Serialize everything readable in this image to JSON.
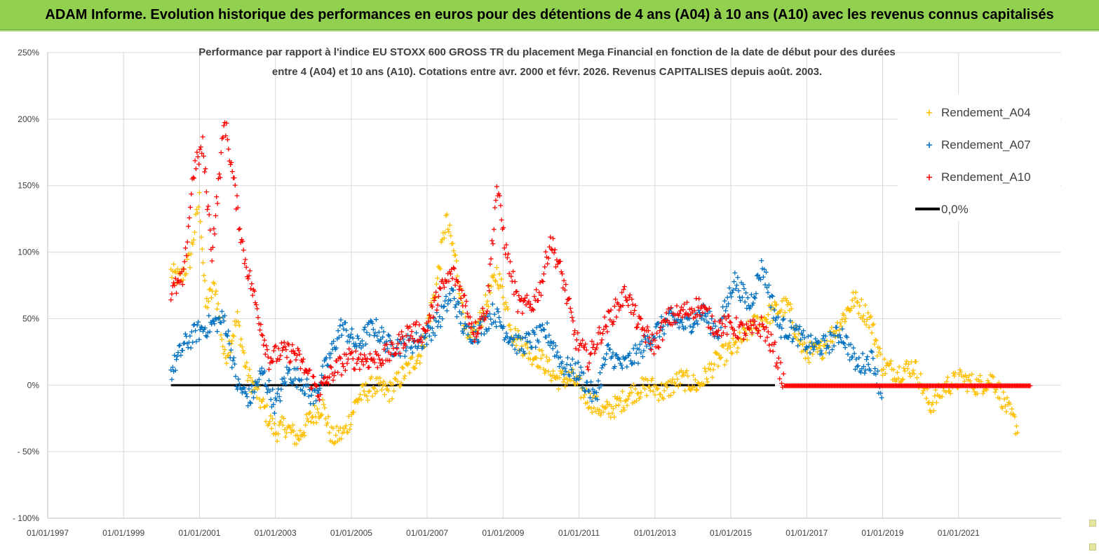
{
  "banner": {
    "title": "ADAM Informe. Evolution historique des performances en euros pour des détentions de 4 ans (A04) à 10 ans (A10) avec les revenus connus capitalisés"
  },
  "chart_data": {
    "type": "scatter",
    "title_line1": "Performance par rapport à l'indice EU STOXX 600 GROSS TR  du placement Mega Financial  en fonction de la date de début pour des durées",
    "title_line2": "entre 4 (A04) et 10 ans (A10). Cotations entre avr. 2000 et févr. 2026. Revenus CAPITALISES depuis août. 2003.",
    "x_ticks": [
      "01/01/1997",
      "01/01/1999",
      "01/01/2001",
      "01/01/2003",
      "01/01/2005",
      "01/01/2007",
      "01/01/2009",
      "01/01/2011",
      "01/01/2013",
      "01/01/2015",
      "01/01/2017",
      "01/01/2019",
      "01/01/2021"
    ],
    "y_ticks": [
      "250%",
      "200%",
      "150%",
      "100%",
      "50%",
      "0%",
      "- 50%",
      "- 100%"
    ],
    "xlim": [
      "1997-01-01",
      "2023-09-15"
    ],
    "ylim": [
      -100,
      250
    ],
    "grid": true,
    "legend_position": "top-right",
    "series": [
      {
        "name": "Rendement_A04",
        "color": "#ffc000",
        "marker": "+",
        "points": [
          [
            "2000-04-01",
            85
          ],
          [
            "2000-07-01",
            80
          ],
          [
            "2000-10-01",
            95
          ],
          [
            "2001-01-01",
            140
          ],
          [
            "2001-03-01",
            60
          ],
          [
            "2001-06-01",
            75
          ],
          [
            "2001-09-01",
            20
          ],
          [
            "2002-01-01",
            50
          ],
          [
            "2002-04-01",
            10
          ],
          [
            "2002-08-01",
            -10
          ],
          [
            "2003-01-01",
            -35
          ],
          [
            "2003-04-01",
            -30
          ],
          [
            "2003-08-01",
            -40
          ],
          [
            "2003-12-01",
            -25
          ],
          [
            "2004-04-01",
            -15
          ],
          [
            "2004-07-01",
            -40
          ],
          [
            "2004-11-01",
            -35
          ],
          [
            "2005-03-01",
            -10
          ],
          [
            "2005-08-01",
            0
          ],
          [
            "2006-01-01",
            -5
          ],
          [
            "2006-06-01",
            10
          ],
          [
            "2006-11-01",
            25
          ],
          [
            "2007-04-01",
            75
          ],
          [
            "2007-07-01",
            125
          ],
          [
            "2007-10-01",
            95
          ],
          [
            "2008-02-01",
            30
          ],
          [
            "2008-06-01",
            50
          ],
          [
            "2008-11-01",
            85
          ],
          [
            "2009-01-01",
            70
          ],
          [
            "2009-04-01",
            40
          ],
          [
            "2009-09-01",
            25
          ],
          [
            "2010-01-01",
            20
          ],
          [
            "2010-06-01",
            5
          ],
          [
            "2010-11-01",
            5
          ],
          [
            "2011-04-01",
            -10
          ],
          [
            "2011-09-01",
            -20
          ],
          [
            "2012-01-01",
            -15
          ],
          [
            "2012-06-01",
            -5
          ],
          [
            "2012-11-01",
            0
          ],
          [
            "2013-04-01",
            -5
          ],
          [
            "2013-09-01",
            5
          ],
          [
            "2014-03-01",
            0
          ],
          [
            "2014-09-01",
            20
          ],
          [
            "2015-03-01",
            30
          ],
          [
            "2015-08-01",
            45
          ],
          [
            "2016-02-01",
            55
          ],
          [
            "2016-07-01",
            60
          ],
          [
            "2016-12-01",
            25
          ],
          [
            "2017-05-01",
            25
          ],
          [
            "2017-11-01",
            45
          ],
          [
            "2018-04-01",
            65
          ],
          [
            "2018-09-01",
            50
          ],
          [
            "2019-01-01",
            15
          ],
          [
            "2019-06-01",
            10
          ],
          [
            "2019-11-01",
            15
          ],
          [
            "2020-04-01",
            -15
          ],
          [
            "2020-09-01",
            0
          ],
          [
            "2021-02-01",
            5
          ],
          [
            "2021-07-01",
            0
          ],
          [
            "2021-12-01",
            5
          ],
          [
            "2022-05-01",
            -20
          ],
          [
            "2022-08-01",
            -33
          ]
        ]
      },
      {
        "name": "Rendement_A07",
        "color": "#0070c0",
        "marker": "+",
        "points": [
          [
            "2000-04-01",
            10
          ],
          [
            "2000-08-01",
            30
          ],
          [
            "2000-12-01",
            40
          ],
          [
            "2001-04-01",
            45
          ],
          [
            "2001-09-01",
            50
          ],
          [
            "2002-01-01",
            0
          ],
          [
            "2002-05-01",
            -10
          ],
          [
            "2002-09-01",
            10
          ],
          [
            "2003-01-01",
            -15
          ],
          [
            "2003-05-01",
            10
          ],
          [
            "2003-09-01",
            5
          ],
          [
            "2004-01-01",
            -10
          ],
          [
            "2004-06-01",
            20
          ],
          [
            "2004-10-01",
            45
          ],
          [
            "2005-03-01",
            30
          ],
          [
            "2005-08-01",
            45
          ],
          [
            "2006-01-01",
            30
          ],
          [
            "2006-06-01",
            30
          ],
          [
            "2006-12-01",
            35
          ],
          [
            "2007-05-01",
            50
          ],
          [
            "2007-09-01",
            70
          ],
          [
            "2008-01-01",
            40
          ],
          [
            "2008-05-01",
            40
          ],
          [
            "2008-10-01",
            55
          ],
          [
            "2009-02-01",
            40
          ],
          [
            "2009-06-01",
            30
          ],
          [
            "2009-11-01",
            35
          ],
          [
            "2010-03-01",
            40
          ],
          [
            "2010-08-01",
            15
          ],
          [
            "2011-01-01",
            10
          ],
          [
            "2011-06-01",
            -10
          ],
          [
            "2011-10-01",
            25
          ],
          [
            "2012-03-01",
            15
          ],
          [
            "2012-08-01",
            25
          ],
          [
            "2013-01-01",
            40
          ],
          [
            "2013-06-01",
            50
          ],
          [
            "2013-11-01",
            45
          ],
          [
            "2014-04-01",
            55
          ],
          [
            "2014-09-01",
            40
          ],
          [
            "2015-02-01",
            80
          ],
          [
            "2015-07-01",
            60
          ],
          [
            "2015-11-01",
            90
          ],
          [
            "2016-04-01",
            45
          ],
          [
            "2016-09-01",
            40
          ],
          [
            "2017-02-01",
            30
          ],
          [
            "2017-07-01",
            30
          ],
          [
            "2017-12-01",
            40
          ],
          [
            "2018-05-01",
            15
          ],
          [
            "2018-10-01",
            20
          ],
          [
            "2019-01-01",
            -10
          ]
        ]
      },
      {
        "name": "Rendement_A10",
        "color": "#ff0000",
        "marker": "+",
        "points": [
          [
            "2000-04-01",
            70
          ],
          [
            "2000-08-01",
            80
          ],
          [
            "2000-11-01",
            160
          ],
          [
            "2001-02-01",
            180
          ],
          [
            "2001-05-01",
            100
          ],
          [
            "2001-09-01",
            200
          ],
          [
            "2001-12-01",
            150
          ],
          [
            "2002-03-01",
            100
          ],
          [
            "2002-07-01",
            60
          ],
          [
            "2002-11-01",
            20
          ],
          [
            "2003-03-01",
            25
          ],
          [
            "2003-07-01",
            25
          ],
          [
            "2003-11-01",
            10
          ],
          [
            "2004-03-01",
            -5
          ],
          [
            "2004-07-01",
            10
          ],
          [
            "2004-12-01",
            20
          ],
          [
            "2005-04-01",
            20
          ],
          [
            "2005-09-01",
            20
          ],
          [
            "2006-02-01",
            25
          ],
          [
            "2006-07-01",
            40
          ],
          [
            "2006-12-01",
            40
          ],
          [
            "2007-05-01",
            70
          ],
          [
            "2007-09-01",
            85
          ],
          [
            "2007-12-01",
            70
          ],
          [
            "2008-04-01",
            40
          ],
          [
            "2008-08-01",
            60
          ],
          [
            "2008-11-01",
            150
          ],
          [
            "2009-02-01",
            100
          ],
          [
            "2009-06-01",
            60
          ],
          [
            "2009-10-01",
            60
          ],
          [
            "2010-01-01",
            75
          ],
          [
            "2010-04-01",
            110
          ],
          [
            "2010-08-01",
            80
          ],
          [
            "2010-12-01",
            35
          ],
          [
            "2011-04-01",
            20
          ],
          [
            "2011-08-01",
            40
          ],
          [
            "2011-12-01",
            55
          ],
          [
            "2012-04-01",
            70
          ],
          [
            "2012-08-01",
            45
          ],
          [
            "2013-01-01",
            30
          ],
          [
            "2013-05-01",
            50
          ],
          [
            "2013-10-01",
            55
          ],
          [
            "2014-03-01",
            60
          ],
          [
            "2014-08-01",
            45
          ],
          [
            "2015-01-01",
            45
          ],
          [
            "2015-06-01",
            40
          ],
          [
            "2015-11-01",
            45
          ],
          [
            "2016-03-01",
            25
          ],
          [
            "2016-06-01",
            0
          ],
          [
            "2019-01-01",
            0
          ],
          [
            "2021-01-01",
            0
          ],
          [
            "2022-12-01",
            0
          ]
        ]
      }
    ],
    "reference_line": {
      "name": "0,0%",
      "color": "#000000",
      "y": 0,
      "x_from": "2000-04-01",
      "x_to": "2016-03-01"
    }
  }
}
